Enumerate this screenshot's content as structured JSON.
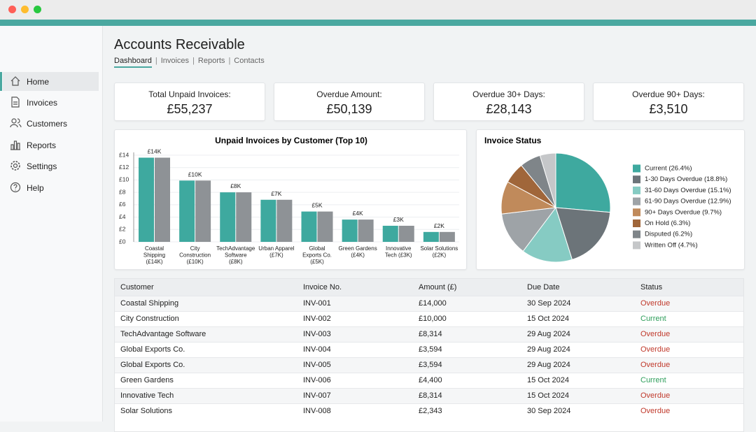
{
  "sidebar": {
    "items": [
      "Home",
      "Invoices",
      "Customers",
      "Reports",
      "Settings",
      "Help"
    ]
  },
  "header": {
    "title": "Accounts Receivable",
    "tabs": [
      "Dashboard",
      "Invoices",
      "Reports",
      "Contacts"
    ]
  },
  "kpis": [
    {
      "label": "Total Unpaid Invoices:",
      "value": "£55,237"
    },
    {
      "label": "Overdue Amount:",
      "value": "£50,139"
    },
    {
      "label": "Overdue 30+ Days:",
      "value": "£28,143"
    },
    {
      "label": "Overdue 90+ Days:",
      "value": "£3,510"
    }
  ],
  "chart_data": [
    {
      "type": "bar",
      "title": "Unpaid Invoices by Customer (Top 10)",
      "categories": [
        [
          "Coastal",
          "Shipping",
          "(£14K)"
        ],
        [
          "City",
          "Construction",
          "(£10K)"
        ],
        [
          "TechAdvantage",
          "Software",
          "(£8K)"
        ],
        [
          "Urban Apparel",
          "(£7K)"
        ],
        [
          "Global",
          "Exports Co.",
          "(£5K)"
        ],
        [
          "Green Gardens",
          "(£4K)"
        ],
        [
          "Innovative",
          "Tech (£3K)"
        ],
        [
          "Solar Solutions",
          "(£2K)"
        ]
      ],
      "series": [
        {
          "color": "#3ea99f",
          "values": [
            13.6,
            9.9,
            8.0,
            6.8,
            4.9,
            3.6,
            2.6,
            1.6
          ],
          "value_labels": [
            "£14K",
            "£10K",
            "£8K",
            "£7K",
            "£5K",
            "£4K",
            "£3K",
            "£2K"
          ]
        },
        {
          "color": "#8e9296",
          "values": [
            13.6,
            9.9,
            8.0,
            6.8,
            4.9,
            3.6,
            2.6,
            1.6
          ]
        }
      ],
      "ylim": [
        0,
        14
      ],
      "yticks": [
        {
          "value": 0,
          "label": "£0"
        },
        {
          "value": 2,
          "label": "£2"
        },
        {
          "value": 4,
          "label": "£4"
        },
        {
          "value": 6,
          "label": "£6"
        },
        {
          "value": 8,
          "label": "£8"
        },
        {
          "value": 10,
          "label": "£10"
        },
        {
          "value": 12,
          "label": "£12"
        },
        {
          "value": 14,
          "label": "£14"
        }
      ],
      "grid": true
    },
    {
      "type": "pie",
      "title": "Invoice Status",
      "categories": [
        "Current (26.4%)",
        "1-30 Days Overdue (18.8%)",
        "31-60 Days Overdue (15.1%)",
        "61-90 Days Overdue (12.9%)",
        "90+ Days Overdue (9.7%)",
        "On Hold (6.3%)",
        "Disputed (6.2%)",
        "Written Off (4.7%)"
      ],
      "values": [
        26.4,
        18.8,
        15.1,
        12.9,
        9.7,
        6.3,
        6.2,
        4.7
      ],
      "colors": [
        "#3ea99f",
        "#6c7479",
        "#86cbc3",
        "#9ea3a7",
        "#c08a5b",
        "#a0663a",
        "#7f8589",
        "#c5c7c9"
      ]
    }
  ],
  "table": {
    "columns": [
      "Customer",
      "Invoice No.",
      "Amount (£)",
      "Due Date",
      "Status"
    ],
    "rows": [
      [
        "Coastal Shipping",
        "INV-001",
        "£14,000",
        "30 Sep 2024",
        "Overdue"
      ],
      [
        "City Construction",
        "INV-002",
        "£10,000",
        "15 Oct 2024",
        "Current"
      ],
      [
        "TechAdvantage Software",
        "INV-003",
        "£8,314",
        "29 Aug 2024",
        "Overdue"
      ],
      [
        "Global Exports Co.",
        "INV-004",
        "£3,594",
        "29 Aug 2024",
        "Overdue"
      ],
      [
        "Global Exports Co.",
        "INV-005",
        "£3,594",
        "29 Aug 2024",
        "Overdue"
      ],
      [
        "Green Gardens",
        "INV-006",
        "£4,400",
        "15 Oct 2024",
        "Current"
      ],
      [
        "Innovative Tech",
        "INV-007",
        "£8,314",
        "15 Oct 2024",
        "Overdue"
      ],
      [
        "Solar Solutions",
        "INV-008",
        "£2,343",
        "30 Sep 2024",
        "Overdue"
      ]
    ],
    "status_colors": {
      "Overdue": "#c0392b",
      "Current": "#2e9e5b"
    }
  }
}
